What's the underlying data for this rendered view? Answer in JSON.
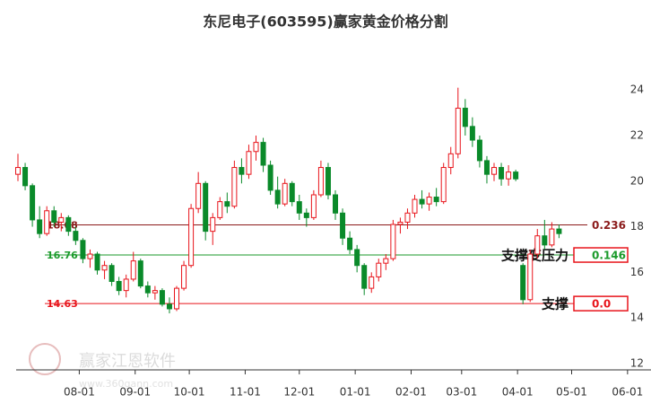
{
  "chart_data": {
    "type": "candlestick",
    "title": "东尼电子(603595)赢家黄金价格分割",
    "x": [
      -3,
      1,
      5,
      9,
      13,
      17,
      21,
      25,
      29,
      33,
      37,
      41,
      45,
      49,
      53,
      57,
      61,
      65,
      69,
      73,
      77,
      81,
      85,
      89,
      93,
      97,
      101,
      105,
      109,
      113,
      117,
      121,
      125,
      129,
      133,
      137,
      141,
      145,
      149,
      153,
      157,
      161,
      165,
      169,
      173,
      177,
      181,
      185,
      189,
      193,
      197,
      201,
      205,
      209,
      213,
      217,
      221,
      225,
      229,
      233,
      237,
      241,
      245,
      249,
      253,
      257,
      261,
      265,
      269,
      273,
      277,
      281,
      285,
      289,
      293,
      297
    ],
    "open": [
      20.3,
      20.6,
      19.8,
      18.3,
      17.7,
      18.7,
      18.2,
      18.4,
      17.8,
      17.4,
      16.6,
      16.8,
      16.1,
      16.3,
      15.6,
      15.2,
      15.7,
      16.5,
      15.4,
      15.1,
      15.2,
      14.6,
      14.4,
      15.3,
      16.3,
      18.8,
      19.9,
      17.8,
      18.4,
      19.1,
      18.9,
      20.6,
      20.3,
      21.3,
      21.7,
      20.7,
      19.6,
      19.0,
      19.9,
      19.1,
      18.6,
      18.4,
      19.4,
      20.6,
      19.4,
      18.6,
      17.5,
      17.0,
      16.3,
      15.3,
      15.8,
      16.4,
      16.6,
      18.1,
      18.2,
      18.6,
      19.2,
      19.0,
      19.3,
      19.1,
      20.6,
      21.2,
      23.2,
      22.4,
      21.8,
      20.9,
      20.3,
      20.6,
      20.1,
      20.4,
      16.3,
      14.8,
      16.8,
      17.6,
      17.2,
      17.9
    ],
    "high": [
      21.2,
      20.8,
      19.9,
      18.9,
      18.9,
      18.9,
      18.6,
      18.5,
      18.0,
      17.5,
      17.0,
      16.9,
      16.5,
      16.4,
      15.8,
      15.9,
      16.9,
      16.6,
      15.6,
      15.4,
      15.3,
      14.9,
      15.4,
      16.5,
      19.0,
      20.4,
      20.0,
      18.6,
      19.3,
      19.5,
      20.9,
      21.0,
      21.6,
      22.0,
      21.9,
      20.9,
      20.2,
      20.1,
      20.0,
      19.4,
      18.8,
      19.6,
      20.9,
      20.8,
      19.6,
      18.8,
      17.8,
      17.2,
      16.4,
      16.0,
      16.6,
      16.8,
      18.3,
      18.4,
      18.8,
      19.4,
      19.6,
      19.5,
      19.7,
      20.8,
      21.5,
      24.1,
      23.6,
      22.8,
      22.0,
      21.1,
      20.8,
      20.8,
      20.7,
      20.5,
      16.4,
      17.0,
      17.9,
      18.3,
      18.2,
      18.1
    ],
    "low": [
      20.0,
      19.6,
      18.0,
      17.5,
      17.6,
      18.0,
      17.8,
      17.6,
      17.2,
      16.4,
      16.2,
      15.9,
      15.7,
      15.4,
      15.0,
      14.9,
      15.6,
      15.3,
      14.9,
      14.8,
      14.5,
      14.2,
      14.3,
      15.2,
      16.2,
      18.6,
      17.4,
      17.2,
      18.3,
      18.6,
      18.8,
      19.9,
      20.1,
      20.9,
      20.4,
      19.4,
      18.8,
      18.9,
      18.9,
      18.3,
      18.0,
      18.3,
      19.3,
      19.2,
      18.3,
      17.2,
      16.8,
      16.0,
      15.0,
      15.1,
      15.6,
      16.1,
      16.5,
      17.7,
      17.9,
      18.4,
      18.8,
      18.7,
      18.9,
      19.0,
      20.3,
      21.0,
      22.0,
      21.5,
      20.6,
      19.9,
      20.0,
      19.8,
      19.8,
      20.0,
      14.6,
      14.7,
      16.6,
      17.0,
      17.1,
      17.5
    ],
    "close": [
      20.6,
      19.8,
      18.3,
      17.7,
      18.7,
      18.2,
      18.4,
      17.8,
      17.4,
      16.6,
      16.8,
      16.1,
      16.3,
      15.6,
      15.2,
      15.7,
      16.5,
      15.4,
      15.1,
      15.2,
      14.6,
      14.4,
      15.3,
      16.3,
      18.8,
      19.9,
      17.8,
      18.4,
      19.1,
      18.9,
      20.6,
      20.3,
      21.3,
      21.7,
      20.7,
      19.6,
      19.0,
      19.9,
      19.1,
      18.6,
      18.4,
      19.4,
      20.6,
      19.4,
      18.6,
      17.5,
      17.0,
      16.3,
      15.3,
      15.8,
      16.4,
      16.6,
      18.1,
      18.2,
      18.6,
      19.2,
      19.0,
      19.3,
      19.1,
      20.6,
      21.2,
      23.2,
      22.4,
      21.8,
      20.9,
      20.3,
      20.6,
      20.1,
      20.4,
      20.1,
      14.8,
      16.8,
      17.6,
      17.2,
      17.9,
      17.7
    ],
    "up_color": "#e8141b",
    "down_color": "#0a8a2a",
    "xlim": [
      -4,
      348
    ],
    "xticks": [
      {
        "value": 31,
        "label": "08-01"
      },
      {
        "value": 62,
        "label": "09-01"
      },
      {
        "value": 92,
        "label": "10-01"
      },
      {
        "value": 123,
        "label": "11-01"
      },
      {
        "value": 153,
        "label": "12-01"
      },
      {
        "value": 184,
        "label": "01-01"
      },
      {
        "value": 215,
        "label": "02-01"
      },
      {
        "value": 243,
        "label": "03-01"
      },
      {
        "value": 274,
        "label": "04-01"
      },
      {
        "value": 304,
        "label": "05-01"
      },
      {
        "value": 335,
        "label": "06-01"
      }
    ],
    "ylim": [
      11.72,
      26.45
    ],
    "yticks": [
      12,
      14,
      16,
      18,
      20,
      22,
      24
    ],
    "levels": [
      {
        "price": 18.08,
        "ratio": 0.236,
        "color": "#8b1a1a"
      },
      {
        "price": 16.76,
        "ratio": 0.146,
        "color": "#1a9a2a",
        "note": "支撑变压力"
      },
      {
        "price": 14.63,
        "ratio": {
          "value": 0,
          "label": "0.0"
        },
        "color": "#e8141b",
        "note": "支撑"
      }
    ],
    "watermark": [
      "赢家江恩软件",
      "www.360gann.com"
    ]
  }
}
